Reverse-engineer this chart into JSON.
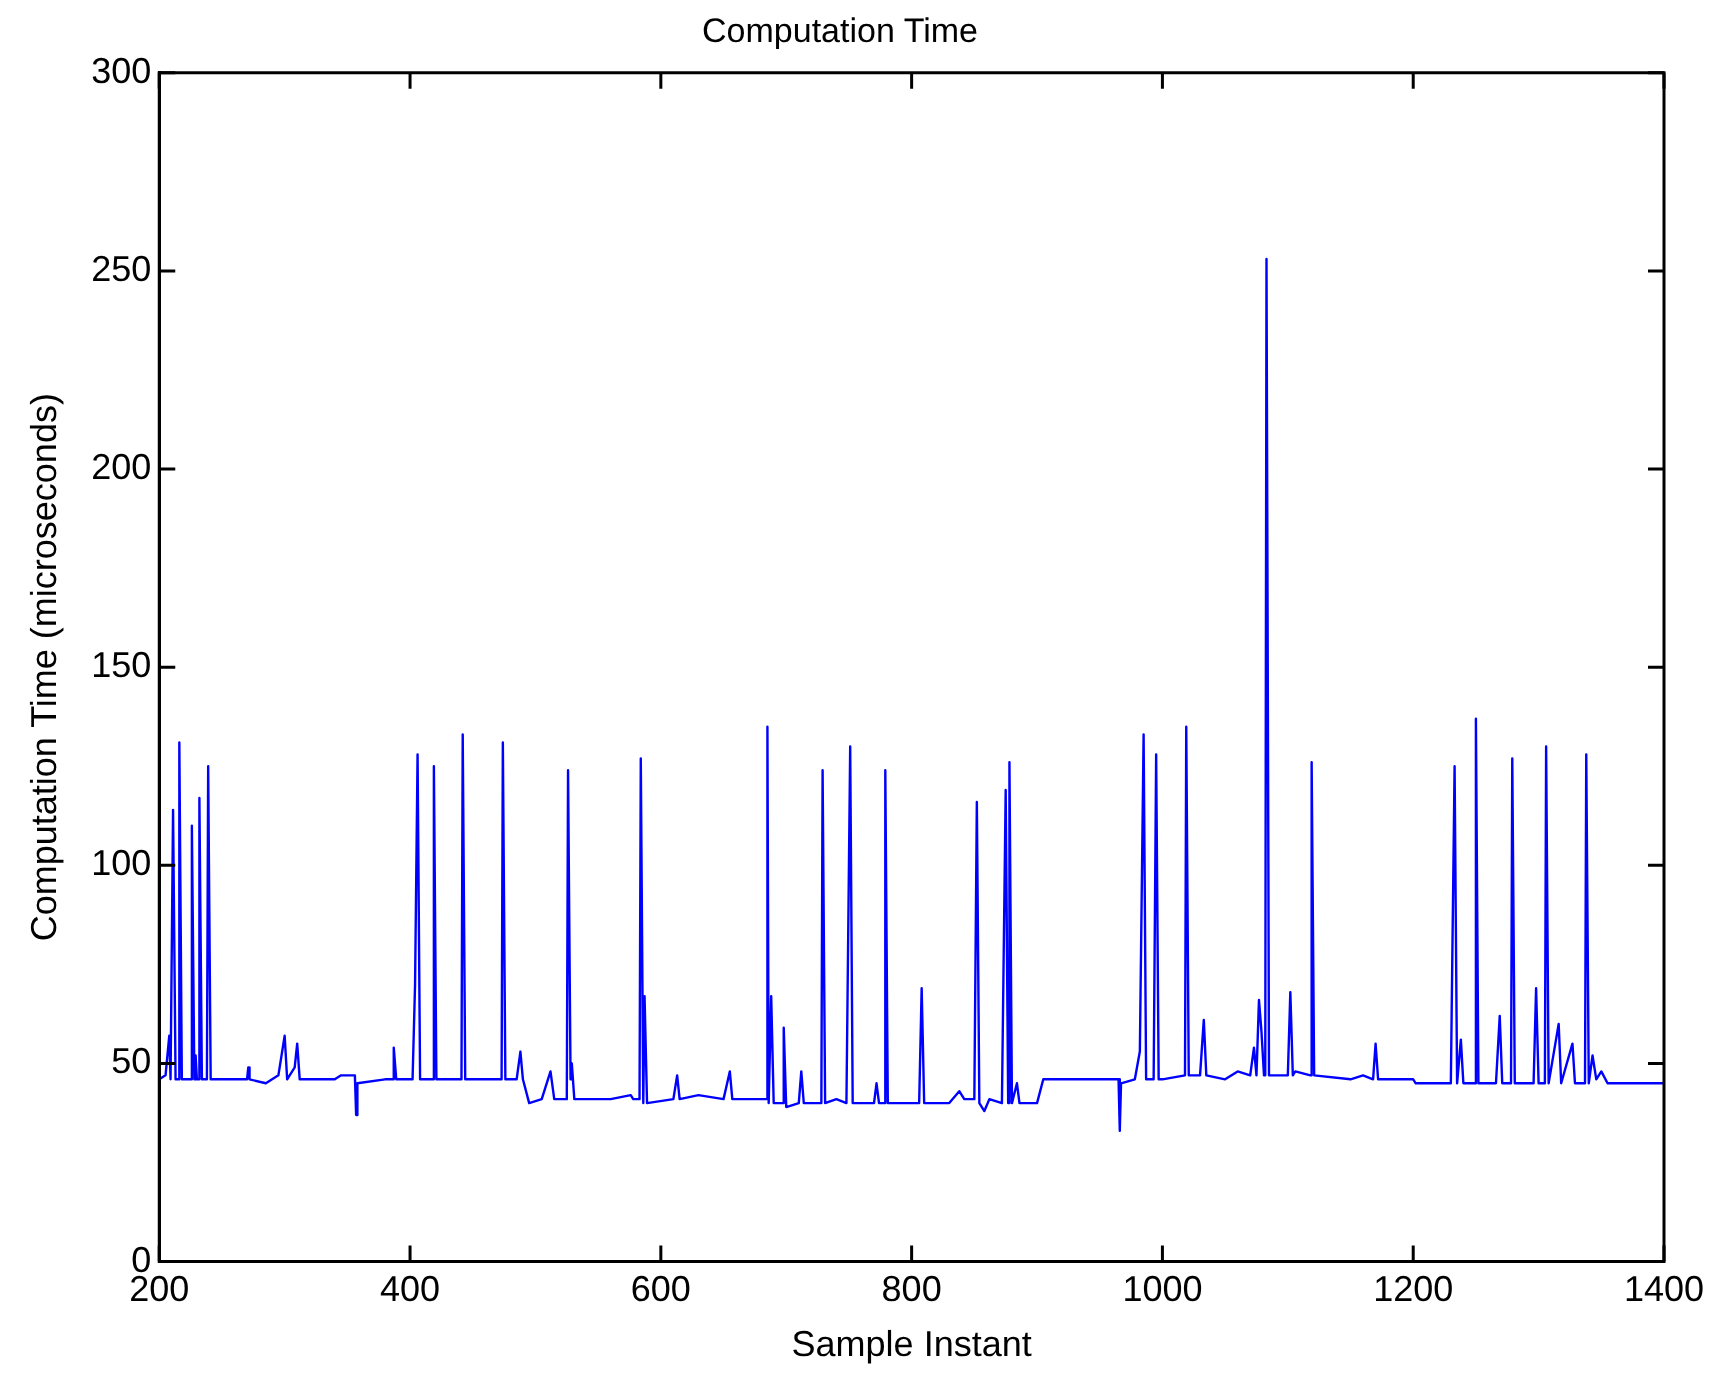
{
  "chart_data": {
    "type": "line",
    "title": "Computation Time",
    "xlabel": "Sample Instant",
    "ylabel": "Computation Time (microseconds)",
    "xlim": [
      200,
      1400
    ],
    "xticks": [
      200,
      400,
      600,
      800,
      1000,
      1200,
      1400
    ],
    "ylim": [
      0,
      300
    ],
    "yticks": [
      0,
      50,
      100,
      150,
      200,
      250,
      300
    ],
    "grid": false,
    "legend": false,
    "marker": "none",
    "line_style": "solid",
    "series": [
      {
        "color": "#0000ff",
        "x": [
          200,
          205,
          208,
          209,
          210,
          211,
          213,
          215,
          216,
          218,
          225,
          226,
          228,
          229,
          230,
          231,
          232,
          234,
          238,
          239,
          241,
          270,
          271,
          272,
          285,
          295,
          300,
          302,
          308,
          310,
          312,
          330,
          340,
          345,
          356,
          357,
          358,
          380,
          386,
          387,
          389,
          402,
          404,
          406,
          408,
          418,
          419,
          421,
          441,
          442,
          444,
          473,
          474,
          476,
          485,
          488,
          490,
          495,
          505,
          512,
          515,
          525,
          526,
          528,
          529,
          531,
          560,
          576,
          578,
          583,
          584,
          586,
          587,
          589,
          610,
          613,
          615,
          630,
          650,
          655,
          657,
          684,
          685,
          686,
          688,
          690,
          697,
          698,
          700,
          710,
          712,
          714,
          728,
          729,
          731,
          740,
          748,
          751,
          753,
          770,
          772,
          774,
          778,
          779,
          781,
          800,
          806,
          808,
          810,
          830,
          838,
          842,
          850,
          852,
          854,
          858,
          862,
          872,
          875,
          877,
          878,
          880,
          884,
          886,
          900,
          905,
          935,
          945,
          960,
          965,
          966,
          967,
          978,
          982,
          985,
          987,
          993,
          995,
          997,
          1000,
          1018,
          1019,
          1021,
          1030,
          1033,
          1035,
          1050,
          1060,
          1070,
          1073,
          1075,
          1077,
          1079,
          1081,
          1082,
          1083,
          1085,
          1100,
          1102,
          1104,
          1106,
          1118,
          1119,
          1121,
          1150,
          1160,
          1168,
          1170,
          1172,
          1200,
          1202,
          1230,
          1233,
          1235,
          1238,
          1240,
          1249,
          1250,
          1252,
          1266,
          1269,
          1271,
          1278,
          1279,
          1281,
          1296,
          1298,
          1300,
          1305,
          1306,
          1308,
          1316,
          1318,
          1327,
          1329,
          1337,
          1338,
          1340,
          1343,
          1346,
          1350,
          1355,
          1400
        ],
        "values": [
          46,
          47,
          57,
          46,
          46,
          114,
          46,
          46,
          131,
          46,
          46,
          110,
          46,
          52,
          46,
          46,
          117,
          46,
          46,
          125,
          46,
          46,
          49,
          46,
          45,
          47,
          57,
          46,
          49,
          55,
          46,
          46,
          46,
          47,
          47,
          37,
          45,
          46,
          46,
          54,
          46,
          46,
          70,
          128,
          46,
          46,
          125,
          46,
          46,
          133,
          46,
          46,
          131,
          46,
          46,
          53,
          46,
          40,
          41,
          48,
          41,
          41,
          124,
          46,
          50,
          41,
          41,
          42,
          41,
          41,
          127,
          40,
          67,
          40,
          41,
          47,
          41,
          42,
          41,
          48,
          41,
          41,
          135,
          40,
          67,
          40,
          40,
          59,
          39,
          40,
          48,
          40,
          40,
          124,
          40,
          41,
          40,
          130,
          40,
          40,
          45,
          40,
          40,
          124,
          40,
          40,
          40,
          69,
          40,
          40,
          43,
          41,
          41,
          116,
          40,
          38,
          41,
          40,
          119,
          40,
          126,
          40,
          45,
          40,
          40,
          46,
          46,
          46,
          46,
          46,
          33,
          45,
          46,
          53,
          133,
          46,
          46,
          128,
          46,
          46,
          47,
          135,
          47,
          47,
          61,
          47,
          46,
          48,
          47,
          54,
          47,
          66,
          58,
          47,
          47,
          253,
          47,
          47,
          68,
          47,
          48,
          47,
          126,
          47,
          46,
          47,
          46,
          55,
          46,
          46,
          45,
          45,
          125,
          45,
          56,
          45,
          45,
          137,
          45,
          45,
          62,
          45,
          45,
          127,
          45,
          45,
          69,
          45,
          45,
          130,
          45,
          60,
          45,
          55,
          45,
          45,
          128,
          45,
          52,
          46,
          48,
          45,
          45
        ]
      }
    ]
  }
}
